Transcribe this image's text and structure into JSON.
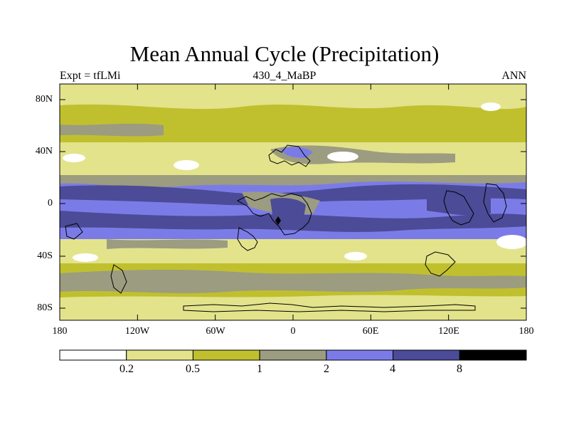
{
  "title": "Mean Annual Cycle (Precipitation)",
  "subtitle_left": "Expt = tfLMi",
  "subtitle_center": "430_4_MaBP",
  "subtitle_right": "ANN",
  "y_ticks": [
    "80N",
    "40N",
    "0",
    "40S",
    "80S"
  ],
  "x_ticks": [
    "180",
    "120W",
    "60W",
    "0",
    "60E",
    "120E",
    "180"
  ],
  "colorbar": {
    "levels": [
      "0.2",
      "0.5",
      "1",
      "2",
      "4",
      "8"
    ],
    "colors": [
      "#ffffff",
      "#e3e38c",
      "#c0c02f",
      "#9c9c80",
      "#7b7be8",
      "#4b4b97",
      "#000000"
    ]
  },
  "colors": {
    "coast": "#000000",
    "frame": "#000000"
  }
}
